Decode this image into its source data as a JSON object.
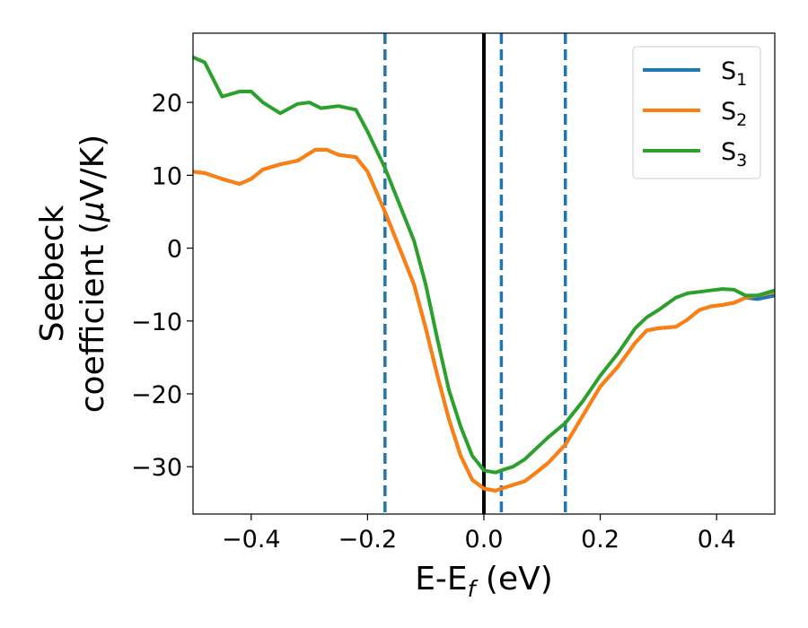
{
  "chart_data": {
    "type": "line",
    "xlabel": "E-E",
    "xlabel_sub": "f",
    "xlabel_unit": " (eV)",
    "ylabel_line1": "Seebeck",
    "ylabel_line2_prefix": "coefficient  (",
    "ylabel_mu": "μ",
    "ylabel_line2_suffix": "V/K)",
    "xlim": [
      -0.5,
      0.5
    ],
    "ylim": [
      -36.5,
      29.5
    ],
    "xticks": [
      -0.4,
      -0.2,
      0.0,
      0.2,
      0.4
    ],
    "xtick_labels": [
      "−0.4",
      "−0.2",
      "0.0",
      "0.2",
      "0.4"
    ],
    "yticks": [
      -30,
      -20,
      -10,
      0,
      10,
      20
    ],
    "ytick_labels": [
      "−30",
      "−20",
      "−10",
      "0",
      "10",
      "20"
    ],
    "grid": false,
    "legend_position": "upper right",
    "reference_lines": [
      {
        "x": 0.0,
        "color": "#000000",
        "style": "solid"
      },
      {
        "x": -0.17,
        "color": "#1f77b4",
        "style": "dashed"
      },
      {
        "x": 0.03,
        "color": "#1f77b4",
        "style": "dashed"
      },
      {
        "x": 0.14,
        "color": "#1f77b4",
        "style": "dashed"
      }
    ],
    "series": [
      {
        "name": "S",
        "sub": "1",
        "color": "#1f77b4",
        "x": [
          -0.5,
          -0.48,
          -0.45,
          -0.42,
          -0.4,
          -0.38,
          -0.35,
          -0.32,
          -0.29,
          -0.27,
          -0.25,
          -0.22,
          -0.2,
          -0.17,
          -0.15,
          -0.12,
          -0.1,
          -0.08,
          -0.06,
          -0.04,
          -0.02,
          0.0,
          0.02,
          0.03,
          0.05,
          0.07,
          0.09,
          0.11,
          0.14,
          0.17,
          0.2,
          0.23,
          0.26,
          0.28,
          0.3,
          0.33,
          0.35,
          0.37,
          0.39,
          0.41,
          0.43,
          0.45,
          0.47,
          0.5
        ],
        "y": [
          10.5,
          10.3,
          9.5,
          8.8,
          9.5,
          10.8,
          11.5,
          12.0,
          13.5,
          13.5,
          12.8,
          12.5,
          10.5,
          5.0,
          1.0,
          -5.0,
          -11.0,
          -17.5,
          -23.5,
          -28.5,
          -31.8,
          -33.0,
          -33.3,
          -33.0,
          -32.5,
          -32.0,
          -30.8,
          -29.5,
          -27.0,
          -23.0,
          -19.0,
          -16.3,
          -13.0,
          -11.3,
          -11.0,
          -10.8,
          -9.8,
          -8.5,
          -8.0,
          -7.8,
          -7.5,
          -6.8,
          -7.0,
          -6.5
        ]
      },
      {
        "name": "S",
        "sub": "2",
        "color": "#ff7f0e",
        "x": [
          -0.5,
          -0.48,
          -0.45,
          -0.42,
          -0.4,
          -0.38,
          -0.35,
          -0.32,
          -0.29,
          -0.27,
          -0.25,
          -0.22,
          -0.2,
          -0.17,
          -0.15,
          -0.12,
          -0.1,
          -0.08,
          -0.06,
          -0.04,
          -0.02,
          0.0,
          0.02,
          0.03,
          0.05,
          0.07,
          0.09,
          0.11,
          0.14,
          0.17,
          0.2,
          0.23,
          0.26,
          0.28,
          0.3,
          0.33,
          0.35,
          0.37,
          0.39,
          0.41,
          0.43,
          0.45,
          0.47,
          0.5
        ],
        "y": [
          10.5,
          10.3,
          9.5,
          8.8,
          9.5,
          10.8,
          11.5,
          12.0,
          13.5,
          13.5,
          12.8,
          12.5,
          10.5,
          5.0,
          1.0,
          -5.0,
          -11.0,
          -17.5,
          -23.5,
          -28.5,
          -31.8,
          -33.0,
          -33.3,
          -33.0,
          -32.5,
          -32.0,
          -30.8,
          -29.5,
          -27.0,
          -23.0,
          -19.0,
          -16.3,
          -13.0,
          -11.3,
          -11.0,
          -10.8,
          -9.8,
          -8.5,
          -8.0,
          -7.8,
          -7.5,
          -6.8,
          -6.5,
          -6.0
        ]
      },
      {
        "name": "S",
        "sub": "3",
        "color": "#2ca02c",
        "x": [
          -0.5,
          -0.48,
          -0.45,
          -0.42,
          -0.4,
          -0.38,
          -0.35,
          -0.32,
          -0.3,
          -0.28,
          -0.25,
          -0.22,
          -0.2,
          -0.17,
          -0.15,
          -0.12,
          -0.1,
          -0.08,
          -0.06,
          -0.04,
          -0.02,
          0.0,
          0.02,
          0.03,
          0.05,
          0.07,
          0.09,
          0.11,
          0.14,
          0.17,
          0.2,
          0.23,
          0.26,
          0.28,
          0.3,
          0.33,
          0.35,
          0.37,
          0.39,
          0.41,
          0.43,
          0.45,
          0.47,
          0.5
        ],
        "y": [
          26.2,
          25.5,
          20.8,
          21.5,
          21.5,
          20.0,
          18.5,
          19.8,
          20.0,
          19.2,
          19.5,
          19.0,
          16.0,
          11.0,
          7.0,
          1.0,
          -5.0,
          -12.5,
          -19.5,
          -24.5,
          -28.5,
          -30.5,
          -30.8,
          -30.5,
          -30.0,
          -29.0,
          -27.5,
          -26.0,
          -24.0,
          -21.0,
          -17.5,
          -14.5,
          -11.0,
          -9.5,
          -8.5,
          -6.8,
          -6.2,
          -6.0,
          -5.8,
          -5.6,
          -5.7,
          -6.5,
          -6.5,
          -5.8
        ]
      }
    ]
  }
}
